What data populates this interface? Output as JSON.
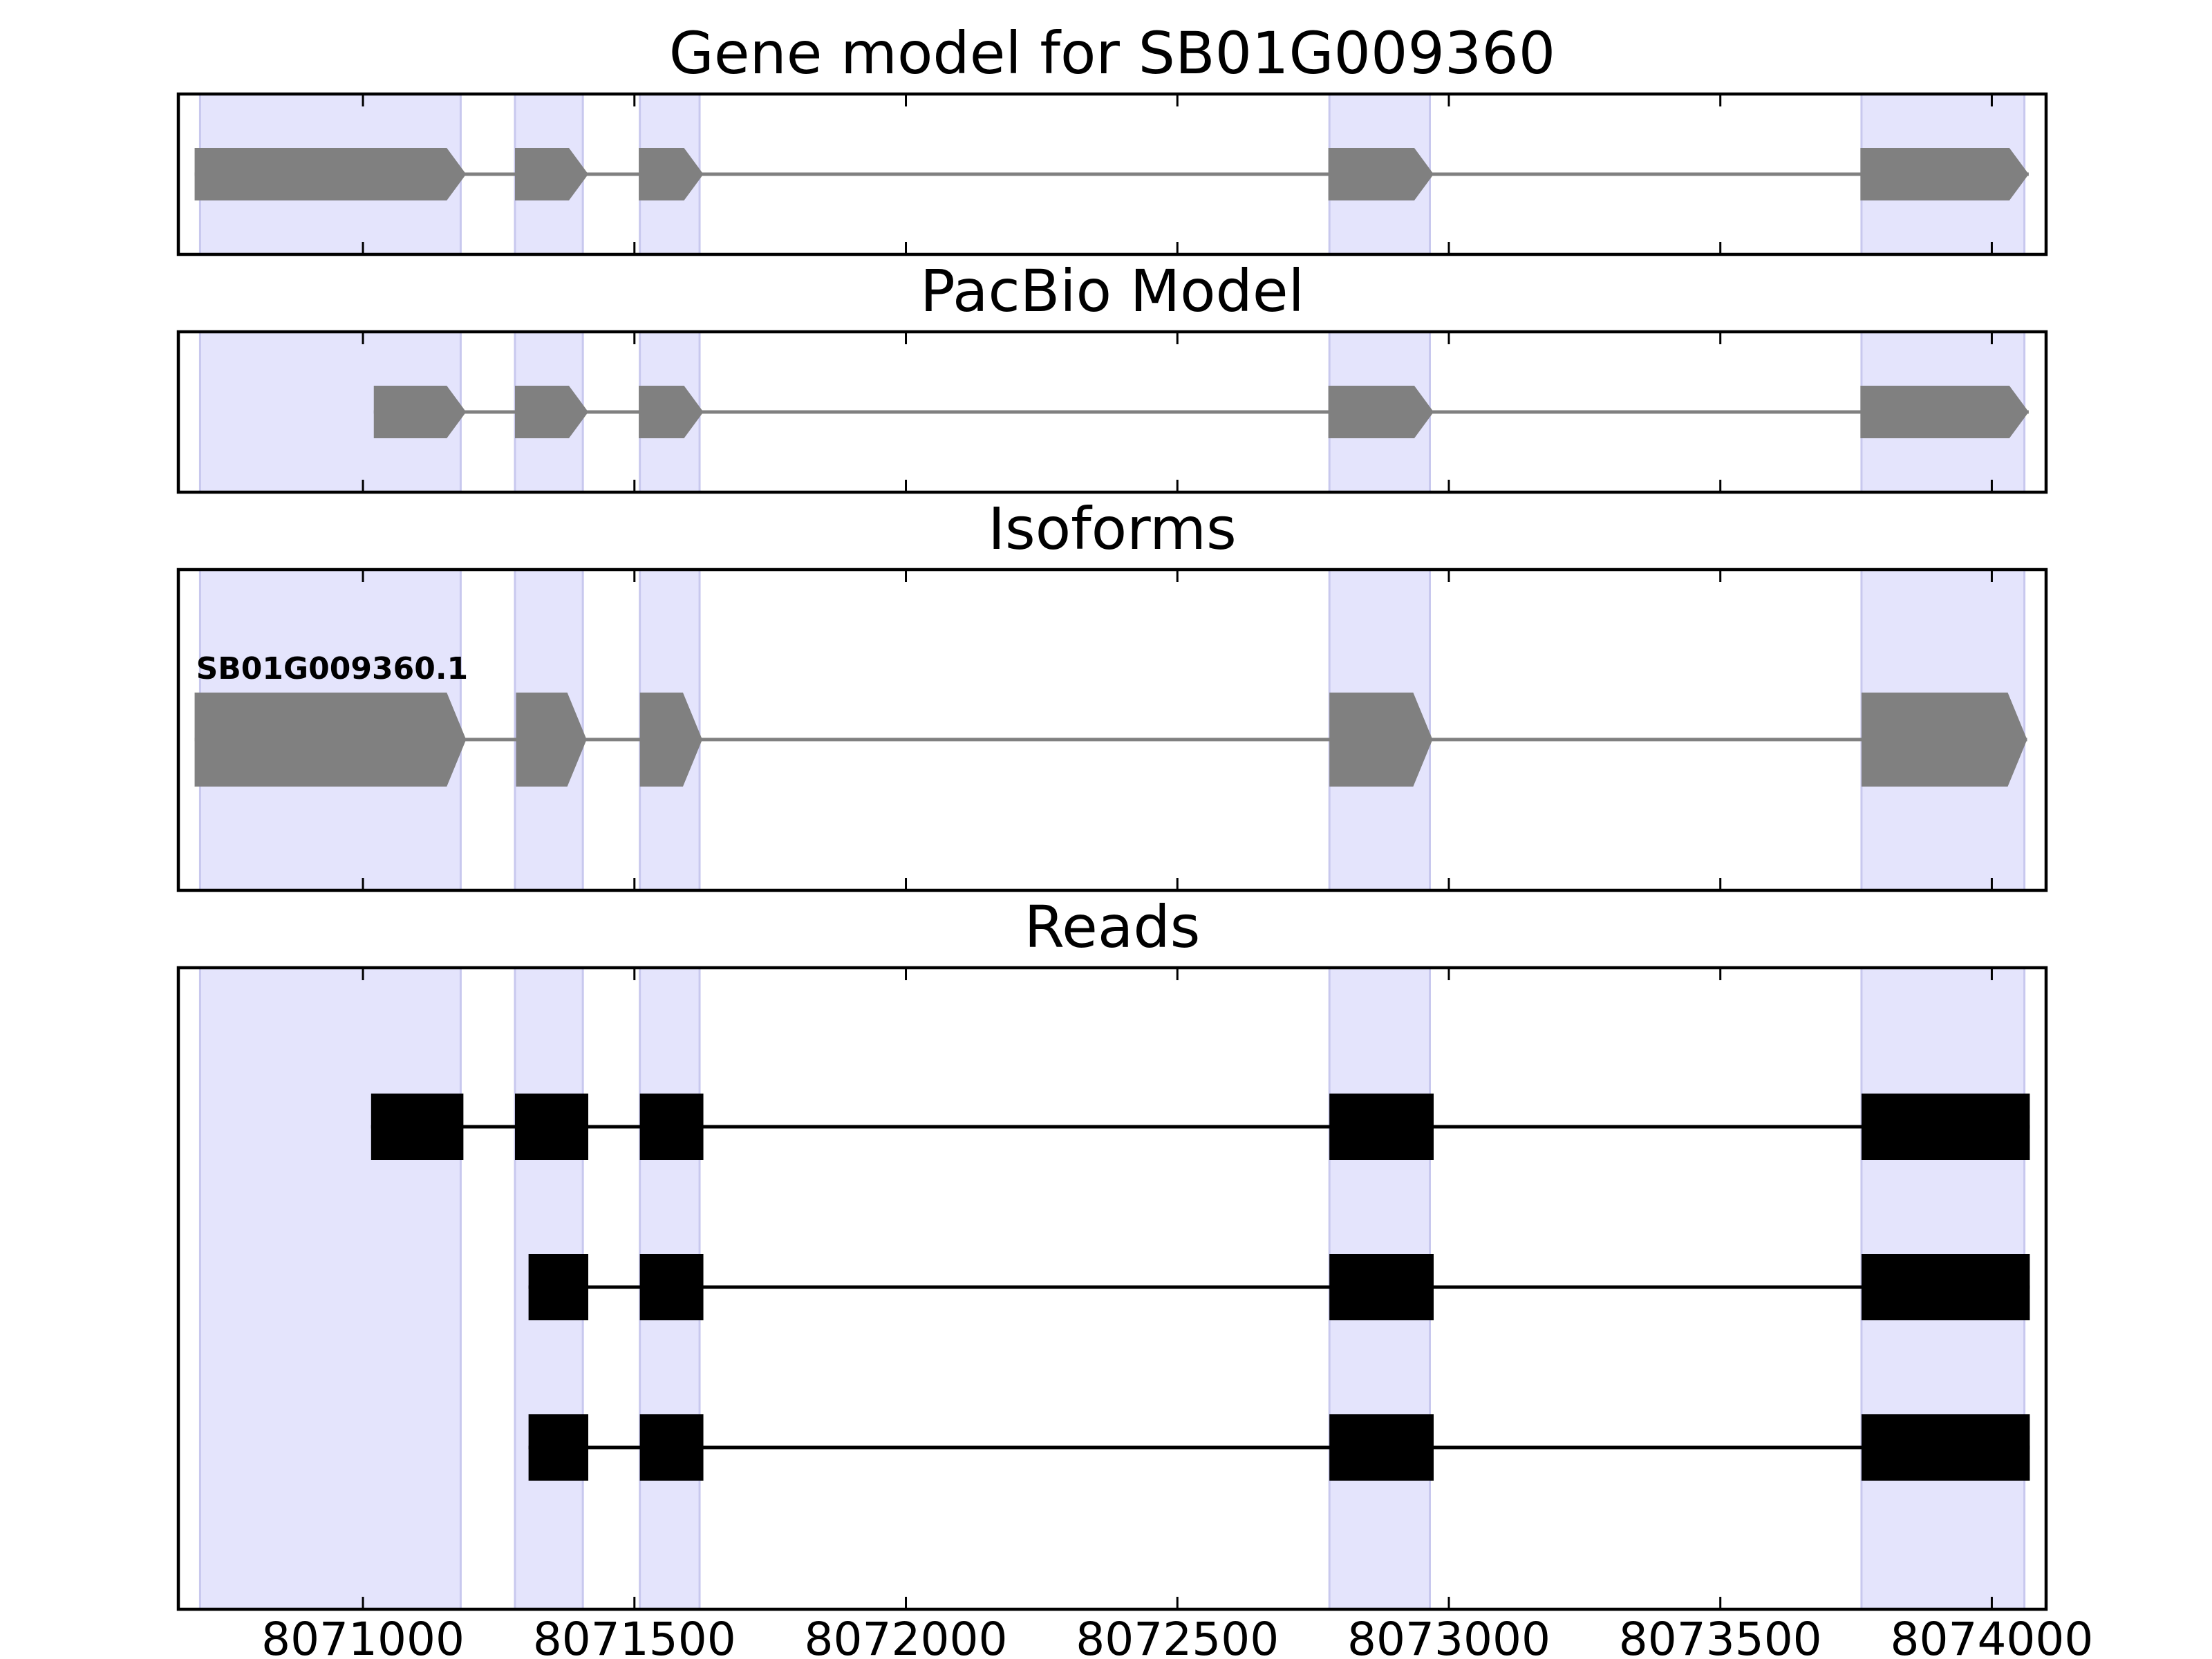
{
  "chart_data": {
    "type": "gene-structure",
    "xlim": [
      8070660,
      8074100
    ],
    "x_ticks": [
      8071000,
      8071500,
      8072000,
      8072500,
      8073000,
      8073500,
      8074000
    ],
    "x_tick_labels": [
      "8071000",
      "8071500",
      "8072000",
      "8072500",
      "8073000",
      "8073500",
      "8074000"
    ],
    "highlight_color": "#e4e4fc",
    "feature_color": "#808080",
    "read_color": "#000000",
    "highlight_regions": [
      [
        8070700,
        8071180
      ],
      [
        8071280,
        8071405
      ],
      [
        8071510,
        8071620
      ],
      [
        8072780,
        8072965
      ],
      [
        8073760,
        8074060
      ]
    ],
    "panels": [
      {
        "title": "Gene model for SB01G009360",
        "kind": "gene",
        "tracks": [
          {
            "label": "",
            "exons": [
              [
                8070690,
                8071190
              ],
              [
                8071280,
                8071415
              ],
              [
                8071508,
                8071627
              ],
              [
                8072778,
                8072972
              ],
              [
                8073758,
                8074068
              ]
            ]
          }
        ]
      },
      {
        "title": "PacBio Model",
        "kind": "gene",
        "tracks": [
          {
            "label": "",
            "exons": [
              [
                8071020,
                8071190
              ],
              [
                8071280,
                8071415
              ],
              [
                8071508,
                8071627
              ],
              [
                8072778,
                8072972
              ],
              [
                8073758,
                8074068
              ]
            ]
          }
        ]
      },
      {
        "title": "Isoforms",
        "kind": "isoform",
        "tracks": [
          {
            "label": "SB01G009360.1",
            "exons": [
              [
                8070690,
                8071190
              ],
              [
                8071282,
                8071412
              ],
              [
                8071510,
                8071625
              ],
              [
                8072780,
                8072970
              ],
              [
                8073760,
                8074065
              ]
            ]
          }
        ]
      },
      {
        "title": "Reads",
        "kind": "reads",
        "tracks": [
          {
            "label": "",
            "exons": [
              [
                8071015,
                8071185
              ],
              [
                8071280,
                8071415
              ],
              [
                8071510,
                8071627
              ],
              [
                8072780,
                8072972
              ],
              [
                8073760,
                8074070
              ]
            ]
          },
          {
            "label": "",
            "exons": [
              [
                8071305,
                8071415
              ],
              [
                8071510,
                8071627
              ],
              [
                8072780,
                8072972
              ],
              [
                8073760,
                8074070
              ]
            ]
          },
          {
            "label": "",
            "exons": [
              [
                8071305,
                8071415
              ],
              [
                8071510,
                8071627
              ],
              [
                8072780,
                8072972
              ],
              [
                8073760,
                8074070
              ]
            ]
          }
        ]
      }
    ]
  }
}
